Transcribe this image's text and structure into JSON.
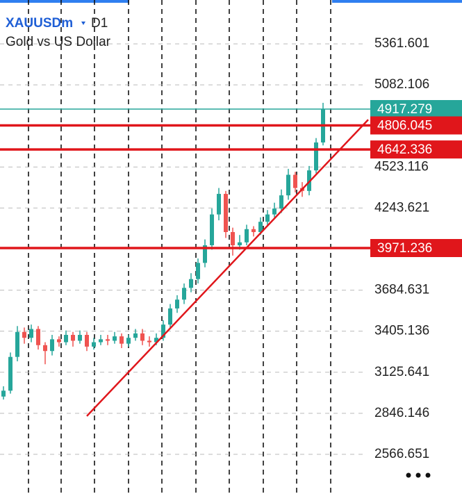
{
  "chart_data": {
    "type": "candlestick",
    "symbol": "XAUUSDm",
    "timeframe": "D1",
    "subtitle": "Gold vs US Dollar",
    "open": [
      2960,
      3000,
      3230,
      3400,
      3360,
      3420,
      3310,
      3270,
      3350,
      3330,
      3380,
      3340,
      3380,
      3300,
      3330,
      3350,
      3340,
      3370,
      3320,
      3360,
      3390,
      3340,
      3330,
      3360,
      3450,
      3560,
      3620,
      3700,
      3760,
      3870,
      3990,
      4200,
      4340,
      4080,
      3990,
      4010,
      4100,
      4080,
      4150,
      4200,
      4240,
      4330,
      4470,
      4380,
      4360,
      4500,
      4690
    ],
    "high": [
      3030,
      3260,
      3440,
      3430,
      3450,
      3440,
      3330,
      3380,
      3370,
      3410,
      3400,
      3410,
      3400,
      3360,
      3380,
      3380,
      3400,
      3390,
      3380,
      3420,
      3420,
      3370,
      3390,
      3480,
      3590,
      3650,
      3730,
      3800,
      3900,
      4030,
      4240,
      4380,
      4360,
      4110,
      4060,
      4130,
      4120,
      4180,
      4230,
      4280,
      4370,
      4510,
      4490,
      4420,
      4530,
      4720,
      4960
    ],
    "low": [
      2940,
      2980,
      3200,
      3320,
      3330,
      3280,
      3180,
      3240,
      3300,
      3310,
      3300,
      3320,
      3270,
      3280,
      3310,
      3310,
      3320,
      3290,
      3300,
      3340,
      3310,
      3300,
      3310,
      3340,
      3420,
      3530,
      3590,
      3670,
      3730,
      3840,
      3960,
      4160,
      4040,
      3920,
      3960,
      3990,
      4050,
      4060,
      4120,
      4180,
      4210,
      4300,
      4350,
      4320,
      4330,
      4480,
      4670
    ],
    "close": [
      3000,
      3230,
      3400,
      3360,
      3420,
      3310,
      3270,
      3350,
      3330,
      3380,
      3340,
      3380,
      3300,
      3330,
      3350,
      3340,
      3370,
      3320,
      3360,
      3390,
      3340,
      3330,
      3360,
      3450,
      3560,
      3620,
      3700,
      3760,
      3870,
      3990,
      4200,
      4340,
      4080,
      3990,
      4010,
      4100,
      4080,
      4150,
      4200,
      4240,
      4330,
      4470,
      4380,
      4360,
      4500,
      4690,
      4917.279
    ],
    "up_color": "#26a69a",
    "down_color": "#ef5350",
    "xlim": [
      -0.5,
      52
    ],
    "ylim": [
      2296.6,
      5660.0
    ],
    "yticks": [
      5361.601,
      5082.106,
      4523.116,
      4243.621,
      3684.631,
      3405.136,
      3125.641,
      2846.146,
      2566.651
    ],
    "current_price": 4917.279,
    "current_color": "#26a69a",
    "levels": [
      4806.045,
      4642.336,
      3971.236
    ],
    "level_color": "#e0161b",
    "trendline": {
      "x": [
        12,
        52.5
      ],
      "y": [
        2827.2,
        4845.2
      ],
      "color": "#e0161b"
    }
  }
}
